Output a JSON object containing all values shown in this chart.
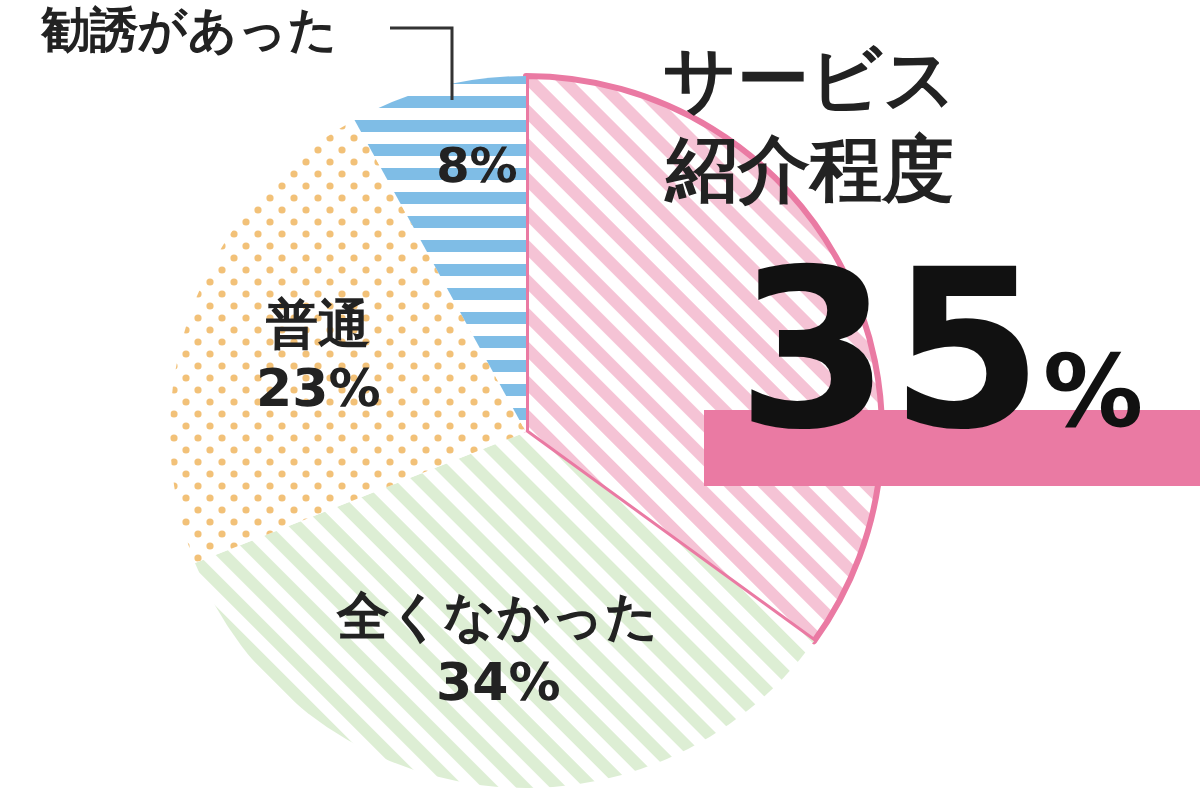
{
  "chart_data": {
    "type": "pie",
    "categories": [
      "サービス紹介程度",
      "全くなかった",
      "普通",
      "勧誘があった"
    ],
    "values": [
      35,
      34,
      23,
      8
    ],
    "value_labels": [
      "35%",
      "34%",
      "23%",
      "8%"
    ],
    "colors": [
      "#ea7aa3",
      "#b5d9a0",
      "#f2c178",
      "#7fbde6"
    ]
  }
}
